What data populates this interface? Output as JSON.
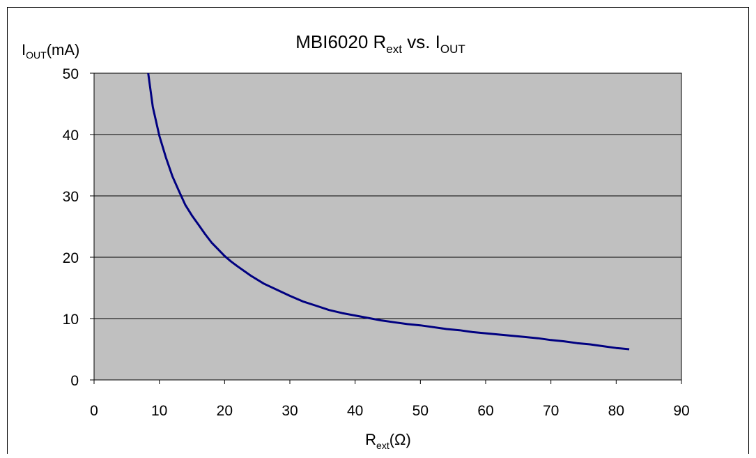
{
  "chart_data": {
    "type": "line",
    "title": {
      "main": "MBI6020 R",
      "sub1": "ext",
      "mid": " vs. I",
      "sub2": "OUT"
    },
    "ylabel": {
      "main": "I",
      "sub": "OUT",
      "rest": "(mA)"
    },
    "xlabel": {
      "main": "R",
      "sub": "ext",
      "rest": "(Ω)"
    },
    "xlim": [
      0,
      90
    ],
    "ylim": [
      0,
      50
    ],
    "xticks": [
      "0",
      "10",
      "20",
      "30",
      "40",
      "50",
      "60",
      "70",
      "80",
      "90"
    ],
    "yticks": [
      "0",
      "10",
      "20",
      "30",
      "40",
      "50"
    ],
    "grid": true,
    "plot_background": "#c0c0c0",
    "line_color": "#000080",
    "series": [
      {
        "x": [
          8.3,
          9,
          10,
          11,
          12,
          13,
          14,
          15,
          16,
          17,
          18,
          19,
          20,
          21,
          22,
          24,
          26,
          28,
          30,
          32,
          34,
          36,
          38,
          40,
          42,
          44,
          46,
          48,
          50,
          52,
          54,
          56,
          58,
          60,
          62,
          64,
          66,
          68,
          70,
          72,
          74,
          76,
          78,
          80,
          82
        ],
        "values": [
          50,
          44.5,
          39.8,
          36.3,
          33.2,
          30.8,
          28.5,
          26.8,
          25.3,
          23.8,
          22.4,
          21.3,
          20.2,
          19.3,
          18.5,
          17.0,
          15.7,
          14.7,
          13.7,
          12.8,
          12.1,
          11.4,
          10.9,
          10.5,
          10.1,
          9.7,
          9.4,
          9.1,
          8.9,
          8.6,
          8.3,
          8.1,
          7.8,
          7.6,
          7.4,
          7.2,
          7.0,
          6.8,
          6.5,
          6.3,
          6.0,
          5.8,
          5.5,
          5.2,
          5.0
        ]
      }
    ]
  }
}
